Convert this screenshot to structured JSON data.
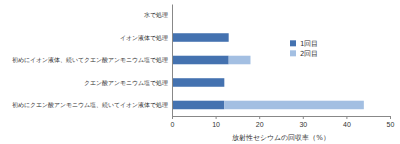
{
  "chart_data": {
    "type": "bar",
    "orientation": "horizontal",
    "stacked": true,
    "x_label": "放射性セシウムの回収率（%）",
    "categories": [
      "水で処理",
      "イオン液体で処理",
      "初めにイオン液体、続いてクエン酸アンモニウム塩で処理",
      "クエン酸アンモニウム塩で処理",
      "初めにクエン酸アンモニウム塩、続いてイオン液体で処理"
    ],
    "series": [
      {
        "name": "1回目",
        "color": "#4472b0",
        "values": [
          0,
          13,
          13,
          12,
          12
        ]
      },
      {
        "name": "2回目",
        "color": "#a3bfe2",
        "values": [
          0,
          0,
          5,
          0,
          32
        ]
      }
    ],
    "xlim": [
      0,
      50
    ],
    "xticks": [
      0,
      10,
      20,
      30,
      40,
      50
    ],
    "grid": false,
    "legend": "right"
  }
}
